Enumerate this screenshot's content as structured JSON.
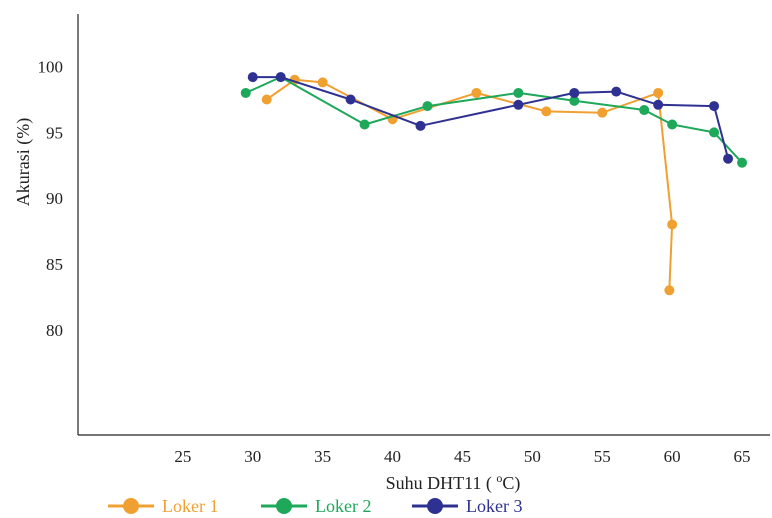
{
  "chart_data": {
    "type": "line",
    "title": "",
    "xlabel": "Suhu DHT11 ( °C)",
    "xlabel_parts": {
      "pre": "Suhu DHT11 ( ",
      "sup": "o",
      "post": "C)"
    },
    "ylabel": "Akurasi (%)",
    "xlim": [
      17.5,
      67
    ],
    "ylim": [
      72,
      104
    ],
    "xticks": [
      "25",
      "30",
      "35",
      "40",
      "45",
      "50",
      "55",
      "60",
      "65"
    ],
    "yticks": [
      "80",
      "85",
      "90",
      "95",
      "100"
    ],
    "grid": false,
    "legend_position": "bottom",
    "series": [
      {
        "name": "Loker 1",
        "color": "#F0A030",
        "x": [
          31,
          33,
          35,
          40,
          46,
          51,
          55,
          59,
          60,
          59.8
        ],
        "y": [
          97.5,
          99,
          98.8,
          96,
          98,
          96.6,
          96.5,
          98,
          88,
          83
        ]
      },
      {
        "name": "Loker 2",
        "color": "#1DA85A",
        "x": [
          29.5,
          32,
          38,
          42.5,
          49,
          53,
          58,
          60,
          63,
          65
        ],
        "y": [
          98,
          99.2,
          95.6,
          97,
          98,
          97.4,
          96.7,
          95.6,
          95,
          92.7
        ]
      },
      {
        "name": "Loker 3",
        "color": "#2E3192",
        "x": [
          30,
          32,
          37,
          42,
          49,
          53,
          56,
          59,
          63,
          64
        ],
        "y": [
          99.2,
          99.2,
          97.5,
          95.5,
          97.1,
          98,
          98.1,
          97.1,
          97,
          93
        ]
      }
    ]
  }
}
